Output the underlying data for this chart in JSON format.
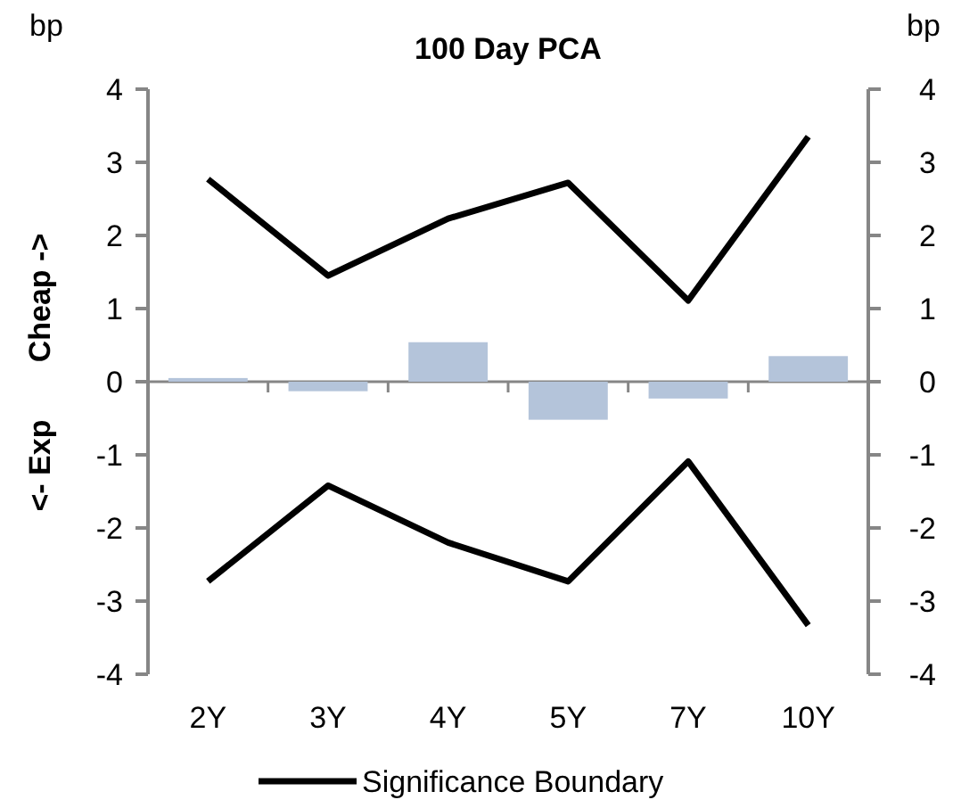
{
  "chart_data": {
    "type": "bar",
    "title": "100 Day PCA",
    "ylabel": "bp",
    "y2label": "bp",
    "annotations": [
      "<- Exp",
      "Cheap ->"
    ],
    "categories": [
      "2Y",
      "3Y",
      "4Y",
      "5Y",
      "7Y",
      "10Y"
    ],
    "series": [
      {
        "color": "#b4c4da",
        "values": [
          0.05,
          -0.13,
          0.54,
          -0.52,
          -0.23,
          0.35
        ]
      },
      {
        "type": "line",
        "name": "Significance Boundary",
        "color": "#000000",
        "values": [
          2.77,
          1.45,
          2.23,
          2.72,
          1.11,
          3.35
        ]
      },
      {
        "type": "line",
        "color": "#000000",
        "values": [
          -2.73,
          -1.42,
          -2.2,
          -2.73,
          -1.09,
          -3.33
        ]
      }
    ],
    "ylim": [
      -4,
      4
    ],
    "yticks": [
      -4,
      -3,
      -2,
      -1,
      0,
      1,
      2,
      3,
      4
    ],
    "y2lim": [
      -4,
      4
    ],
    "y2ticks": [
      -4,
      -3,
      -2,
      -1,
      0,
      1,
      2,
      3,
      4
    ],
    "legend": "bottom",
    "marker": "none",
    "line_style": "solid"
  }
}
